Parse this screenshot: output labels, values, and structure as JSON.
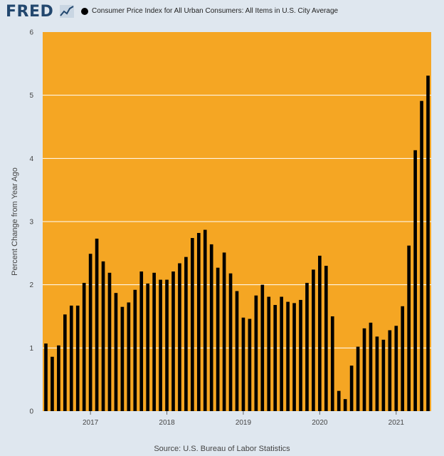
{
  "header": {
    "logo_text": "FRED",
    "logo_icon": "line-graph-icon",
    "legend_label": "Consumer Price Index for All Urban Consumers: All Items in U.S. City Average"
  },
  "source_note": "Source: U.S. Bureau of Labor Statistics",
  "colors": {
    "plot_background": "#f5a623",
    "page_background": "#dfe7ef",
    "bar": "#000000",
    "gridline": "#ffffff",
    "logo": "#22476e"
  },
  "chart_data": {
    "type": "bar",
    "title": "Consumer Price Index for All Urban Consumers: All Items in U.S. City Average",
    "xlabel": "",
    "ylabel": "Percent Change from Year Ago",
    "ylim": [
      0,
      6
    ],
    "yticks": [
      0,
      1,
      2,
      3,
      4,
      5,
      6
    ],
    "grid": true,
    "legend": "top-left",
    "xtick_labels": [
      {
        "label": "2017",
        "category": "2017-01"
      },
      {
        "label": "2018",
        "category": "2018-01"
      },
      {
        "label": "2019",
        "category": "2019-01"
      },
      {
        "label": "2020",
        "category": "2020-01"
      },
      {
        "label": "2021",
        "category": "2021-01"
      }
    ],
    "categories": [
      "2016-06",
      "2016-07",
      "2016-08",
      "2016-09",
      "2016-10",
      "2016-11",
      "2016-12",
      "2017-01",
      "2017-02",
      "2017-03",
      "2017-04",
      "2017-05",
      "2017-06",
      "2017-07",
      "2017-08",
      "2017-09",
      "2017-10",
      "2017-11",
      "2017-12",
      "2018-01",
      "2018-02",
      "2018-03",
      "2018-04",
      "2018-05",
      "2018-06",
      "2018-07",
      "2018-08",
      "2018-09",
      "2018-10",
      "2018-11",
      "2018-12",
      "2019-01",
      "2019-02",
      "2019-03",
      "2019-04",
      "2019-05",
      "2019-06",
      "2019-07",
      "2019-08",
      "2019-09",
      "2019-10",
      "2019-11",
      "2019-12",
      "2020-01",
      "2020-02",
      "2020-03",
      "2020-04",
      "2020-05",
      "2020-06",
      "2020-07",
      "2020-08",
      "2020-09",
      "2020-10",
      "2020-11",
      "2020-12",
      "2021-01",
      "2021-02",
      "2021-03",
      "2021-04",
      "2021-05",
      "2021-06"
    ],
    "values": [
      1.07,
      0.86,
      1.04,
      1.53,
      1.67,
      1.67,
      2.03,
      2.49,
      2.73,
      2.37,
      2.19,
      1.87,
      1.65,
      1.72,
      1.92,
      2.21,
      2.02,
      2.19,
      2.08,
      2.08,
      2.21,
      2.34,
      2.44,
      2.74,
      2.82,
      2.87,
      2.64,
      2.27,
      2.51,
      2.18,
      1.9,
      1.48,
      1.46,
      1.83,
      2.0,
      1.81,
      1.68,
      1.81,
      1.73,
      1.71,
      1.76,
      2.03,
      2.24,
      2.46,
      2.3,
      1.5,
      0.32,
      0.19,
      0.72,
      1.02,
      1.31,
      1.4,
      1.18,
      1.13,
      1.28,
      1.35,
      1.66,
      2.62,
      4.13,
      4.91,
      5.31
    ]
  }
}
